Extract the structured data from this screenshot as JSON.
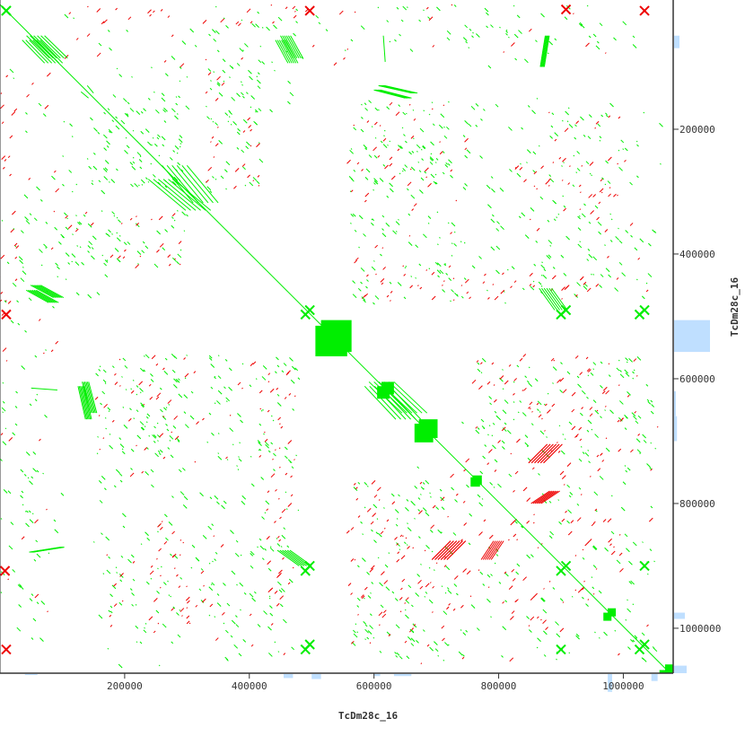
{
  "chart_data": {
    "type": "scatter",
    "subtype": "dot-plot self alignment",
    "xlabel": "TcDm28c_16",
    "ylabel": "TcDm28c_16",
    "xlim": [
      0,
      1080000
    ],
    "ylim": [
      0,
      1072000
    ],
    "y_inverted": true,
    "grid": false,
    "xticks": [
      200000,
      400000,
      600000,
      800000,
      1000000
    ],
    "yticks": [
      200000,
      400000,
      600000,
      800000,
      1000000
    ],
    "colors": {
      "forward": "#00ee00",
      "reverse": "#ee0000",
      "coverage": "#bfdfff",
      "axis": "#333333"
    },
    "symmetric": true,
    "segments": [
      {
        "x1": 0,
        "y1": 0,
        "x2": 1075000,
        "y2": 1072000,
        "strand": "forward"
      },
      {
        "x1": 515000,
        "y1": 506000,
        "x2": 564000,
        "y2": 557000,
        "strand": "forward",
        "filled": true
      },
      {
        "x1": 672000,
        "y1": 665000,
        "x2": 702000,
        "y2": 695000,
        "strand": "forward",
        "filled": true
      },
      {
        "x1": 1067000,
        "y1": 1058000,
        "x2": 1080000,
        "y2": 1072000,
        "strand": "forward",
        "filled": true
      },
      {
        "x1": 975000,
        "y1": 968000,
        "x2": 988000,
        "y2": 981000,
        "strand": "forward",
        "filled": true
      },
      {
        "x1": 612000,
        "y1": 605000,
        "x2": 632000,
        "y2": 625000,
        "strand": "forward",
        "filled": true
      },
      {
        "x1": 758000,
        "y1": 755000,
        "x2": 773000,
        "y2": 770000,
        "strand": "forward",
        "filled": true
      },
      {
        "x1": 140000,
        "y1": 130000,
        "x2": 150000,
        "y2": 142000,
        "strand": "forward"
      },
      {
        "x1": 57000,
        "y1": 50000,
        "x2": 94000,
        "y2": 86000,
        "strand": "forward",
        "hatched": true
      },
      {
        "x1": 57000,
        "y1": 450000,
        "x2": 94000,
        "y2": 470000,
        "strand": "forward",
        "hatched": true
      },
      {
        "x1": 458000,
        "y1": 50000,
        "x2": 478000,
        "y2": 86000,
        "strand": "forward",
        "hatched": true
      },
      {
        "x1": 280000,
        "y1": 258000,
        "x2": 330000,
        "y2": 318000,
        "strand": "forward",
        "hatched": true
      },
      {
        "x1": 612000,
        "y1": 605000,
        "x2": 665000,
        "y2": 655000,
        "strand": "forward",
        "hatched": true
      },
      {
        "x1": 137000,
        "y1": 605000,
        "x2": 150000,
        "y2": 655000,
        "strand": "forward",
        "hatched": true
      },
      {
        "x1": 612000,
        "y1": 130000,
        "x2": 665000,
        "y2": 142000,
        "strand": "forward",
        "hatched": true
      },
      {
        "x1": 50000,
        "y1": 615000,
        "x2": 92000,
        "y2": 618000,
        "strand": "forward"
      },
      {
        "x1": 50000,
        "y1": 878000,
        "x2": 100000,
        "y2": 870000,
        "strand": "forward",
        "hatched": true
      },
      {
        "x1": 455000,
        "y1": 875000,
        "x2": 490000,
        "y2": 900000,
        "strand": "forward",
        "hatched": true
      },
      {
        "x1": 860000,
        "y1": 705000,
        "x2": 890000,
        "y2": 735000,
        "strand": "reverse",
        "hatched": true
      },
      {
        "x1": 705000,
        "y1": 860000,
        "x2": 735000,
        "y2": 890000,
        "strand": "reverse",
        "hatched": true
      },
      {
        "x1": 780000,
        "y1": 860000,
        "x2": 800000,
        "y2": 890000,
        "strand": "reverse",
        "hatched": true
      }
    ],
    "crosses": [
      {
        "x": 497000,
        "y": 10000,
        "strand": "reverse"
      },
      {
        "x": 1034000,
        "y": 10000,
        "strand": "reverse"
      },
      {
        "x": 908000,
        "y": 8000,
        "strand": "reverse"
      },
      {
        "x": 10000,
        "y": 10000,
        "strand": "forward"
      },
      {
        "x": 497000,
        "y": 490000,
        "strand": "forward"
      },
      {
        "x": 1034000,
        "y": 1026000,
        "strand": "forward"
      },
      {
        "x": 908000,
        "y": 900000,
        "strand": "forward"
      },
      {
        "x": 908000,
        "y": 490000,
        "strand": "forward"
      },
      {
        "x": 1034000,
        "y": 490000,
        "strand": "forward"
      },
      {
        "x": 1034000,
        "y": 900000,
        "strand": "forward"
      },
      {
        "x": 497000,
        "y": 1026000,
        "strand": "forward"
      },
      {
        "x": 497000,
        "y": 900000,
        "strand": "forward"
      }
    ],
    "dot_clusters": [
      {
        "x": [
          100000,
          300000
        ],
        "y": [
          150000,
          300000
        ],
        "strand": "forward",
        "count": 60
      },
      {
        "x": [
          100000,
          300000
        ],
        "y": [
          330000,
          420000
        ],
        "strand": "forward",
        "count": 50
      },
      {
        "x": [
          100000,
          300000
        ],
        "y": [
          330000,
          420000
        ],
        "strand": "reverse",
        "count": 25
      },
      {
        "x": [
          560000,
          720000
        ],
        "y": [
          150000,
          300000
        ],
        "strand": "forward",
        "count": 60
      },
      {
        "x": [
          560000,
          720000
        ],
        "y": [
          150000,
          300000
        ],
        "strand": "reverse",
        "count": 20
      },
      {
        "x": [
          740000,
          1000000
        ],
        "y": [
          150000,
          300000
        ],
        "strand": "forward",
        "count": 50
      },
      {
        "x": [
          860000,
          1000000
        ],
        "y": [
          250000,
          330000
        ],
        "strand": "reverse",
        "count": 25
      },
      {
        "x": [
          560000,
          1000000
        ],
        "y": [
          330000,
          470000
        ],
        "strand": "forward",
        "count": 70
      },
      {
        "x": [
          560000,
          1000000
        ],
        "y": [
          430000,
          470000
        ],
        "strand": "reverse",
        "count": 40
      },
      {
        "x": [
          160000,
          480000
        ],
        "y": [
          560000,
          760000
        ],
        "strand": "forward",
        "count": 90
      },
      {
        "x": [
          160000,
          480000
        ],
        "y": [
          560000,
          760000
        ],
        "strand": "reverse",
        "count": 35
      },
      {
        "x": [
          740000,
          1050000
        ],
        "y": [
          560000,
          760000
        ],
        "strand": "forward",
        "count": 70
      },
      {
        "x": [
          740000,
          1050000
        ],
        "y": [
          560000,
          760000
        ],
        "strand": "reverse",
        "count": 50
      },
      {
        "x": [
          560000,
          720000
        ],
        "y": [
          760000,
          1060000
        ],
        "strand": "forward",
        "count": 70
      },
      {
        "x": [
          560000,
          720000
        ],
        "y": [
          760000,
          1060000
        ],
        "strand": "reverse",
        "count": 40
      },
      {
        "x": [
          160000,
          480000
        ],
        "y": [
          780000,
          1060000
        ],
        "strand": "forward",
        "count": 80
      },
      {
        "x": [
          160000,
          480000
        ],
        "y": [
          820000,
          1040000
        ],
        "strand": "reverse",
        "count": 30
      },
      {
        "x": [
          740000,
          1050000
        ],
        "y": [
          780000,
          1060000
        ],
        "strand": "forward",
        "count": 60
      },
      {
        "x": [
          740000,
          1050000
        ],
        "y": [
          820000,
          1000000
        ],
        "strand": "reverse",
        "count": 40
      },
      {
        "x": [
          0,
          100000
        ],
        "y": [
          100000,
          1050000
        ],
        "strand": "forward",
        "count": 50
      },
      {
        "x": [
          0,
          100000
        ],
        "y": [
          100000,
          1050000
        ],
        "strand": "reverse",
        "count": 30
      },
      {
        "x": [
          330000,
          480000
        ],
        "y": [
          20000,
          200000
        ],
        "strand": "forward",
        "count": 40
      },
      {
        "x": [
          100000,
          480000
        ],
        "y": [
          0,
          30000
        ],
        "strand": "reverse",
        "count": 20
      },
      {
        "x": [
          540000,
          1000000
        ],
        "y": [
          0,
          60000
        ],
        "strand": "forward",
        "count": 40
      }
    ],
    "coverage_right": [
      {
        "y": [
          50000,
          70000
        ],
        "value": 0.15
      },
      {
        "y": [
          506000,
          557000
        ],
        "value": 1.0
      },
      {
        "y": [
          620000,
          660000
        ],
        "value": 0.05
      },
      {
        "y": [
          660000,
          700000
        ],
        "value": 0.08
      },
      {
        "y": [
          975000,
          985000
        ],
        "value": 0.3
      },
      {
        "y": [
          1060000,
          1072000
        ],
        "value": 0.35
      }
    ],
    "coverage_bottom": [
      {
        "x": [
          40000,
          60000
        ],
        "value": 0.05
      },
      {
        "x": [
          455000,
          470000
        ],
        "value": 0.2
      },
      {
        "x": [
          500000,
          515000
        ],
        "value": 0.25
      },
      {
        "x": [
          600000,
          610000
        ],
        "value": 0.1
      },
      {
        "x": [
          632000,
          660000
        ],
        "value": 0.1
      },
      {
        "x": [
          975000,
          982000
        ],
        "value": 0.9
      },
      {
        "x": [
          1045000,
          1055000
        ],
        "value": 0.35
      }
    ]
  }
}
